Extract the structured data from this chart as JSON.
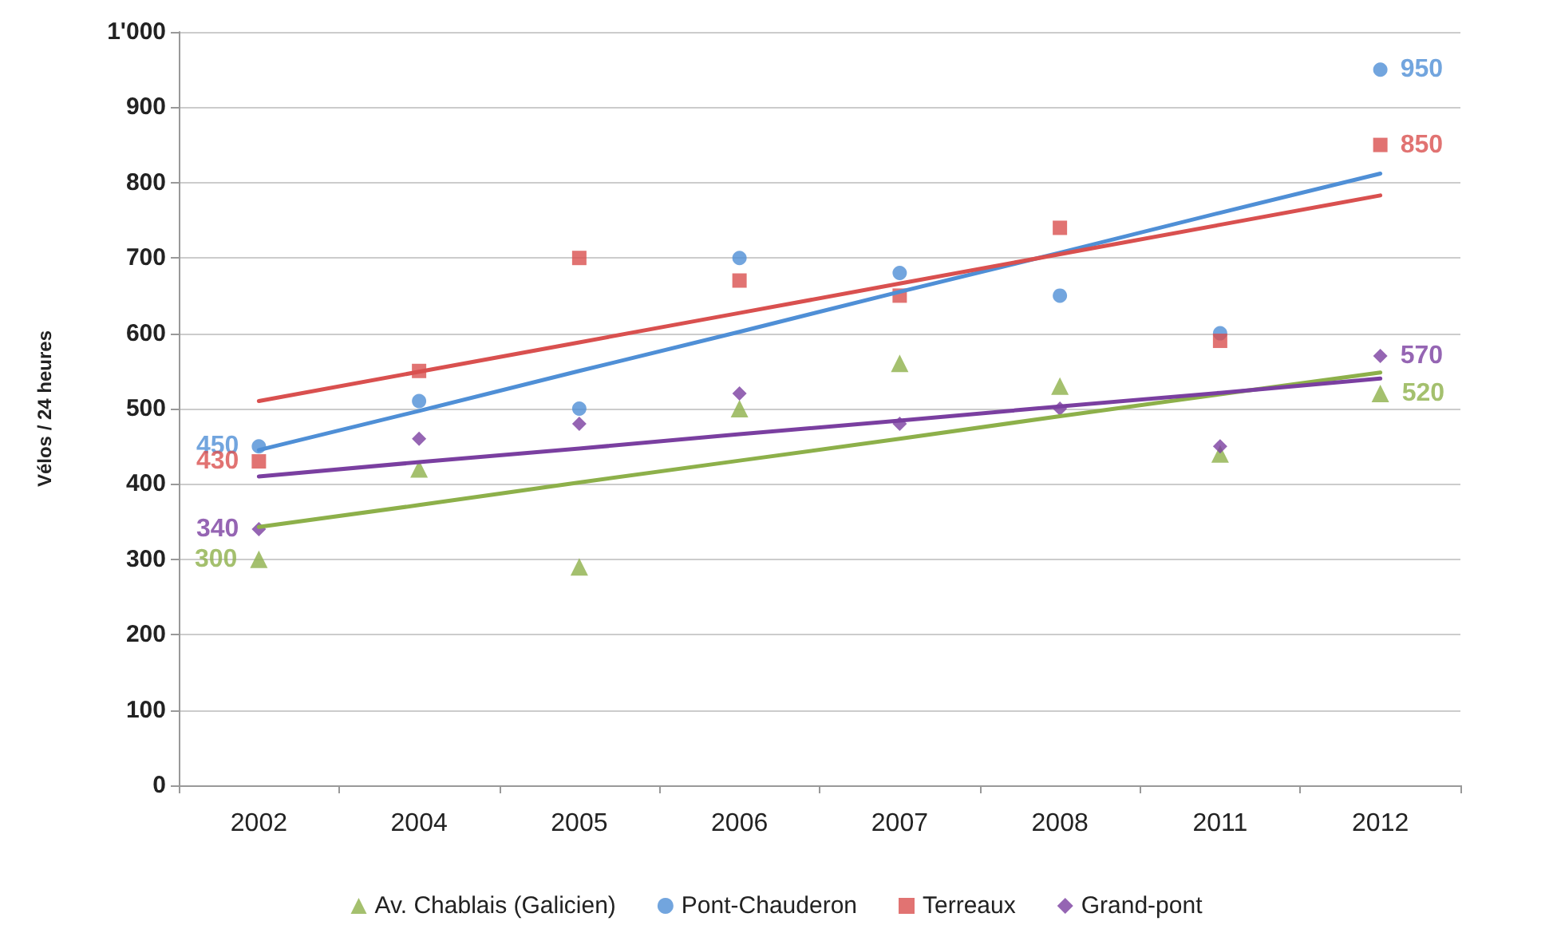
{
  "chart_data": {
    "type": "scatter",
    "ylabel": "Vélos / 24 heures",
    "categories": [
      "2002",
      "2004",
      "2005",
      "2006",
      "2007",
      "2008",
      "2011",
      "2012"
    ],
    "ylim": [
      0,
      1000
    ],
    "yticks": [
      0,
      100,
      200,
      300,
      400,
      500,
      600,
      700,
      800,
      900,
      {
        "value": 1000,
        "label": "1'000"
      }
    ],
    "grid": "y",
    "legend": "bottom",
    "series": [
      {
        "name": "Av. Chablais (Galicien)",
        "color": "#8db04a",
        "marker": "triangle",
        "values": [
          300,
          420,
          290,
          500,
          560,
          530,
          440,
          520
        ],
        "value_labels": [
          "300",
          null,
          null,
          null,
          null,
          null,
          null,
          "520"
        ]
      },
      {
        "name": "Pont-Chauderon",
        "color": "#4f8fd6",
        "marker": "circle",
        "values": [
          450,
          510,
          500,
          700,
          680,
          650,
          600,
          950
        ],
        "value_labels": [
          "450",
          null,
          null,
          null,
          null,
          null,
          null,
          "950"
        ]
      },
      {
        "name": "Terreaux",
        "color": "#d9504f",
        "marker": "square",
        "values": [
          430,
          550,
          700,
          670,
          650,
          740,
          590,
          850
        ],
        "value_labels": [
          "430",
          null,
          null,
          null,
          null,
          null,
          null,
          "850"
        ]
      },
      {
        "name": "Grand-pont",
        "color": "#7a3fa0",
        "marker": "diamond",
        "values": [
          340,
          460,
          480,
          520,
          480,
          500,
          450,
          570
        ],
        "value_labels": [
          "340",
          null,
          null,
          null,
          null,
          null,
          null,
          "570"
        ]
      },
      {
        "type": "line",
        "color": "#8db04a",
        "marker": "none",
        "values": [
          343,
          372,
          402,
          431,
          460,
          490,
          519,
          548
        ]
      },
      {
        "type": "line",
        "color": "#4f8fd6",
        "marker": "none",
        "values": [
          445,
          497,
          550,
          602,
          655,
          707,
          760,
          812
        ]
      },
      {
        "type": "line",
        "color": "#d9504f",
        "marker": "none",
        "values": [
          510,
          549,
          588,
          627,
          666,
          705,
          744,
          783
        ]
      },
      {
        "type": "line",
        "color": "#7a3fa0",
        "marker": "none",
        "values": [
          410,
          429,
          447,
          466,
          484,
          503,
          521,
          540
        ]
      }
    ]
  }
}
